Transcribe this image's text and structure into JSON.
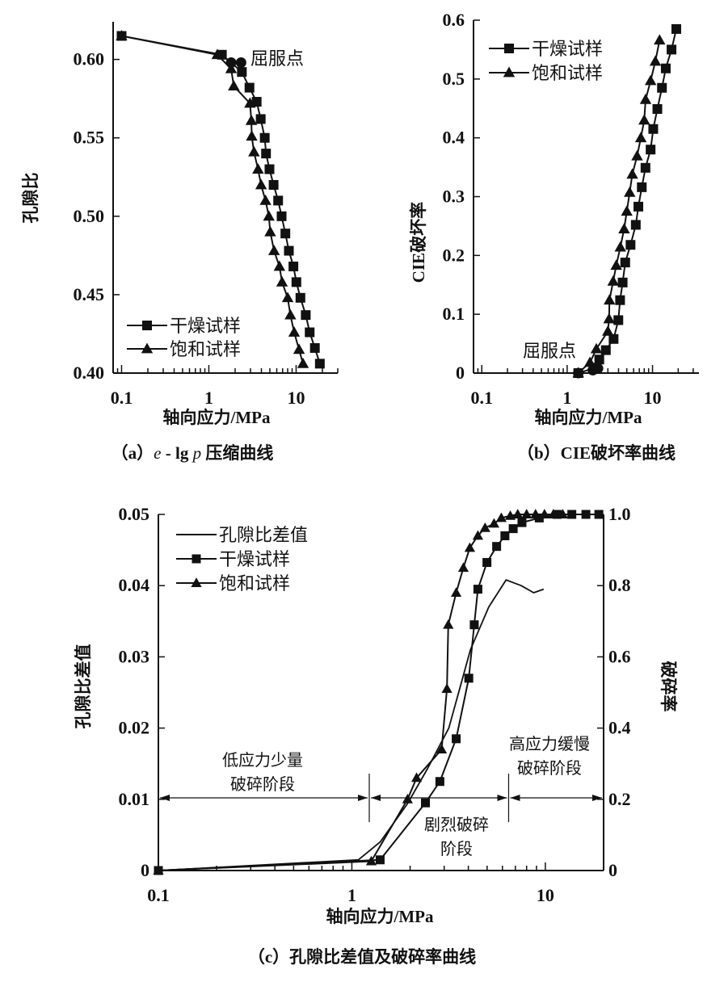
{
  "chart_data": [
    {
      "id": "a",
      "type": "line",
      "xscale": "log",
      "xlabel": "轴向应力/MPa",
      "ylabel": "孔隙比",
      "xlim": [
        0.08,
        30
      ],
      "ylim": [
        0.4,
        0.624
      ],
      "xticks": [
        {
          "v": 0.1,
          "label": "0.1"
        },
        {
          "v": 1,
          "label": "1"
        },
        {
          "v": 10,
          "label": "10"
        }
      ],
      "yticks": [
        {
          "v": 0.4,
          "label": "0.40"
        },
        {
          "v": 0.45,
          "label": "0.45"
        },
        {
          "v": 0.5,
          "label": "0.50"
        },
        {
          "v": 0.55,
          "label": "0.55"
        },
        {
          "v": 0.6,
          "label": "0.60"
        }
      ],
      "caption": {
        "prefix": "（a）",
        "var1": "e",
        "mid": " - lg ",
        "var2": "p",
        "suffix": " 压缩曲线"
      },
      "annotation": "屈服点",
      "yield_points": [
        {
          "x": 1.8,
          "y": 0.598
        },
        {
          "x": 2.34,
          "y": 0.598
        }
      ],
      "legend_position": "bottom-left",
      "series": [
        {
          "name": "干燥试样",
          "marker": "square",
          "x": [
            0.1,
            1.41,
            2.39,
            2.92,
            3.53,
            3.93,
            4.37,
            4.52,
            4.95,
            5.52,
            6.22,
            6.82,
            7.53,
            8.26,
            9.31,
            10.07,
            11.2,
            12.9,
            14.3,
            16.4,
            18.7
          ],
          "y": [
            0.615,
            0.603,
            0.592,
            0.582,
            0.573,
            0.562,
            0.55,
            0.54,
            0.53,
            0.52,
            0.51,
            0.5,
            0.489,
            0.478,
            0.468,
            0.458,
            0.448,
            0.437,
            0.426,
            0.416,
            0.406
          ]
        },
        {
          "name": "饱和试样",
          "marker": "triangle",
          "x": [
            0.1,
            1.25,
            1.8,
            1.93,
            2.96,
            3.07,
            3.1,
            3.29,
            3.66,
            3.97,
            4.46,
            4.87,
            5.05,
            5.59,
            6.44,
            6.9,
            8.0,
            8.6,
            9.5,
            10.8,
            12.0
          ],
          "y": [
            0.615,
            0.603,
            0.594,
            0.583,
            0.572,
            0.561,
            0.551,
            0.541,
            0.53,
            0.52,
            0.51,
            0.5,
            0.49,
            0.478,
            0.468,
            0.458,
            0.448,
            0.437,
            0.426,
            0.415,
            0.406
          ]
        }
      ]
    },
    {
      "id": "b",
      "type": "line",
      "xscale": "log",
      "xlabel": "轴向应力/MPa",
      "ylabel": "CIE破坏率",
      "xlim": [
        0.08,
        35
      ],
      "ylim": [
        0,
        0.6
      ],
      "xticks": [
        {
          "v": 0.1,
          "label": "0.1"
        },
        {
          "v": 1,
          "label": "1"
        },
        {
          "v": 10,
          "label": "10"
        }
      ],
      "yticks": [
        {
          "v": 0,
          "label": "0"
        },
        {
          "v": 0.1,
          "label": "0.1"
        },
        {
          "v": 0.2,
          "label": "0.2"
        },
        {
          "v": 0.3,
          "label": "0.3"
        },
        {
          "v": 0.4,
          "label": "0.4"
        },
        {
          "v": 0.5,
          "label": "0.5"
        },
        {
          "v": 0.6,
          "label": "0.6"
        }
      ],
      "caption": {
        "prefix": "（b）",
        "text": "CIE破坏率曲线"
      },
      "annotation": "屈服点",
      "yield_points": [
        {
          "x": 1.35,
          "y": 0.0
        },
        {
          "x": 2.0,
          "y": 0.005
        },
        {
          "x": 2.3,
          "y": 0.008
        }
      ],
      "legend_position": "top-left",
      "series": [
        {
          "name": "干燥试样",
          "marker": "square",
          "x": [
            1.35,
            2.14,
            2.38,
            2.84,
            3.5,
            3.98,
            4.17,
            4.47,
            4.79,
            5.53,
            6.37,
            6.83,
            7.49,
            8.27,
            9.5,
            10.2,
            11.4,
            12.9,
            14.3,
            16.7,
            19.0
          ],
          "y": [
            0.0,
            0.009,
            0.023,
            0.039,
            0.058,
            0.09,
            0.124,
            0.154,
            0.188,
            0.218,
            0.252,
            0.283,
            0.316,
            0.349,
            0.38,
            0.415,
            0.449,
            0.485,
            0.518,
            0.55,
            0.585
          ]
        },
        {
          "name": "饱和试样",
          "marker": "triangle",
          "x": [
            1.35,
            1.85,
            2.2,
            3.0,
            3.1,
            3.13,
            3.46,
            3.76,
            4.2,
            4.65,
            5.0,
            5.4,
            5.8,
            6.6,
            7.3,
            8.0,
            8.3,
            9.5,
            10.8,
            12.1
          ],
          "y": [
            0.0,
            0.018,
            0.041,
            0.071,
            0.092,
            0.124,
            0.156,
            0.183,
            0.214,
            0.245,
            0.275,
            0.307,
            0.338,
            0.369,
            0.4,
            0.43,
            0.465,
            0.497,
            0.53,
            0.566
          ]
        }
      ]
    },
    {
      "id": "c",
      "type": "line",
      "xscale": "log",
      "xlabel": "轴向应力/MPa",
      "ylabel": "孔隙比差值",
      "ylabel_right": "破碎率",
      "xlim": [
        0.1,
        20
      ],
      "ylim": [
        0,
        0.05
      ],
      "ylim_right": [
        0,
        1.0
      ],
      "xticks": [
        {
          "v": 0.1,
          "label": "0.1"
        },
        {
          "v": 1,
          "label": "1"
        },
        {
          "v": 10,
          "label": "10"
        }
      ],
      "yticks": [
        {
          "v": 0,
          "label": "0"
        },
        {
          "v": 0.01,
          "label": "0.01"
        },
        {
          "v": 0.02,
          "label": "0.02"
        },
        {
          "v": 0.03,
          "label": "0.03"
        },
        {
          "v": 0.04,
          "label": "0.04"
        },
        {
          "v": 0.05,
          "label": "0.05"
        }
      ],
      "yticks_right": [
        {
          "v": 0,
          "label": "0"
        },
        {
          "v": 0.2,
          "label": "0.2"
        },
        {
          "v": 0.4,
          "label": "0.4"
        },
        {
          "v": 0.6,
          "label": "0.6"
        },
        {
          "v": 0.8,
          "label": "0.8"
        },
        {
          "v": 1.0,
          "label": "1.0"
        }
      ],
      "caption": {
        "prefix": "（c）",
        "text": "孔隙比差值及破碎率曲线"
      },
      "legend_position": "top-left",
      "stage_boundaries": [
        1.23,
        6.46
      ],
      "stage_arrow_level": 0.0102,
      "stages": [
        {
          "lines": [
            "低应力少量",
            "破碎阶段"
          ]
        },
        {
          "lines": [
            "剧烈破碎",
            "阶段"
          ]
        },
        {
          "lines": [
            "高应力缓慢",
            "破碎阶段"
          ]
        }
      ],
      "series": [
        {
          "name": "孔隙比差值",
          "marker": "none",
          "axis": "left",
          "x": [
            0.1,
            1.08,
            1.4,
            1.94,
            2.46,
            3.17,
            4.1,
            5.1,
            6.27,
            7.5,
            8.7,
            9.8
          ],
          "y": [
            0.0,
            0.0015,
            0.004,
            0.0094,
            0.0143,
            0.02,
            0.031,
            0.037,
            0.0408,
            0.04,
            0.039,
            0.0395
          ]
        },
        {
          "name": "干燥试样",
          "marker": "square",
          "axis": "right",
          "x": [
            0.1,
            1.4,
            2.4,
            2.85,
            3.46,
            4.02,
            4.29,
            4.48,
            4.99,
            5.6,
            6.18,
            6.82,
            7.57,
            9.3,
            11.5,
            13.7,
            16.2,
            18.9
          ],
          "y": [
            0.0,
            0.03,
            0.19,
            0.25,
            0.37,
            0.54,
            0.69,
            0.79,
            0.865,
            0.91,
            0.94,
            0.96,
            0.977,
            0.99,
            1.0,
            1.0,
            1.0,
            1.0
          ]
        },
        {
          "name": "饱和试样",
          "marker": "triangle",
          "axis": "right",
          "x": [
            0.1,
            1.26,
            1.94,
            2.16,
            2.91,
            3.1,
            3.15,
            3.46,
            3.77,
            4.07,
            4.48,
            4.88,
            5.43,
            5.92,
            6.59,
            7.2,
            8.0,
            8.9,
            9.9,
            11.0,
            12.3
          ],
          "y": [
            0.0,
            0.026,
            0.2,
            0.26,
            0.34,
            0.51,
            0.69,
            0.78,
            0.85,
            0.906,
            0.94,
            0.962,
            0.974,
            0.99,
            0.996,
            1.0,
            1.0,
            1.0,
            1.0,
            1.0,
            1.0
          ]
        }
      ]
    }
  ]
}
